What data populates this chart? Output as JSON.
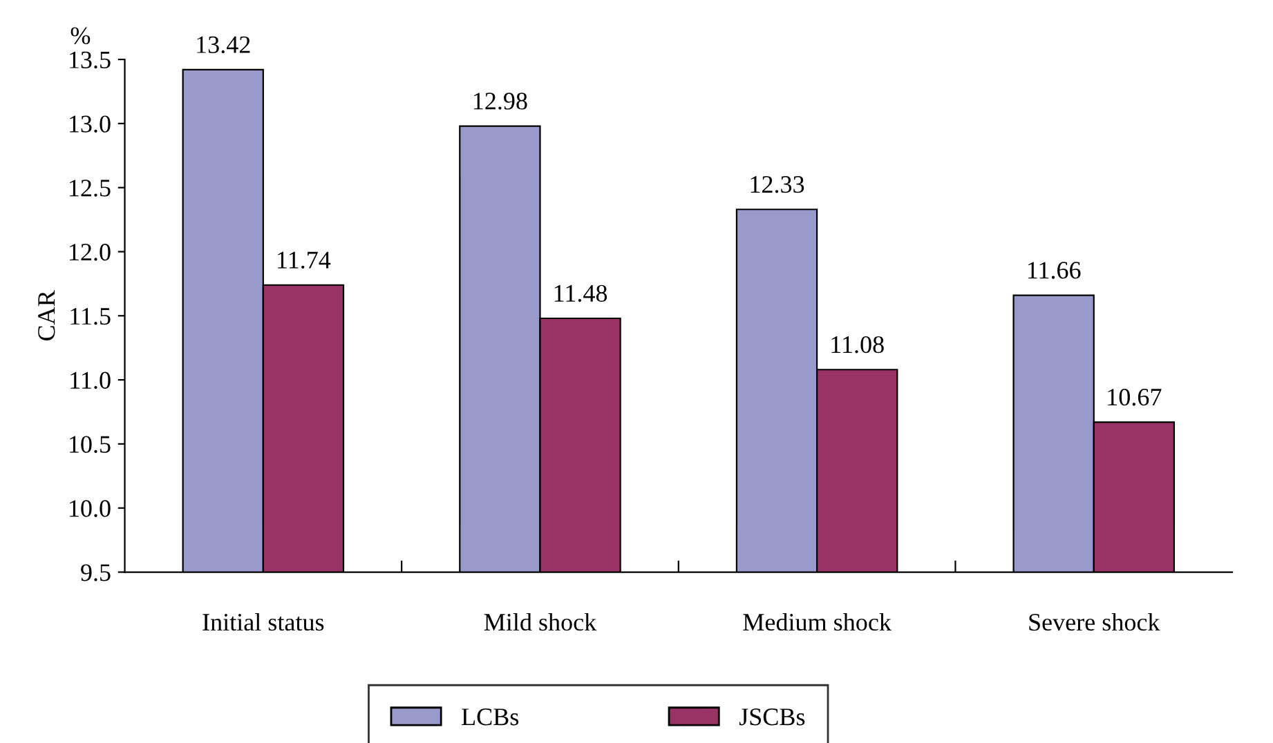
{
  "chart_data": {
    "type": "bar",
    "ylabel": "CAR",
    "annotations": [
      "%"
    ],
    "categories": [
      "Initial status",
      "Mild shock",
      "Medium shock",
      "Severe shock"
    ],
    "series": [
      {
        "name": "LCBs",
        "color": "#9999cc",
        "values": [
          13.42,
          12.98,
          12.33,
          11.66
        ]
      },
      {
        "name": "JSCBs",
        "color": "#993366",
        "values": [
          11.74,
          11.48,
          11.08,
          10.67
        ]
      }
    ],
    "ylim": [
      9.5,
      13.5
    ],
    "yticks": [
      9.5,
      {
        "value": 10,
        "label": "10.0"
      },
      10.5,
      {
        "value": 11,
        "label": "11.0"
      },
      11.5,
      {
        "value": 12,
        "label": "12.0"
      },
      12.5,
      {
        "value": 13,
        "label": "13.0"
      },
      13.5
    ],
    "data_labels": true,
    "legend": "bottom",
    "grid": false
  }
}
